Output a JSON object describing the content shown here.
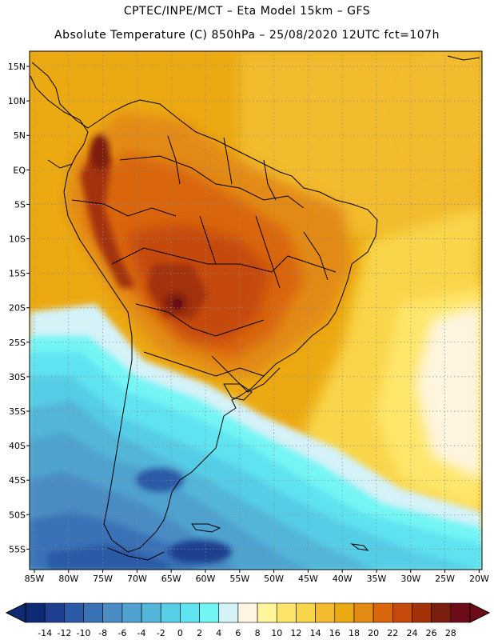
{
  "header": {
    "line1": "CPTEC/INPE/MCT –  Eta Model 15km – GFS",
    "line2": "Absolute Temperature (C) 850hPa – 25/08/2020 12UTC fct=107h"
  },
  "map": {
    "lat_labels": [
      "15N",
      "10N",
      "5N",
      "EQ",
      "5S",
      "10S",
      "15S",
      "20S",
      "25S",
      "30S",
      "35S",
      "40S",
      "45S",
      "50S",
      "55S"
    ],
    "lon_labels": [
      "85W",
      "80W",
      "75W",
      "70W",
      "65W",
      "60W",
      "55W",
      "50W",
      "45W",
      "40W",
      "35W",
      "30W",
      "25W",
      "20W"
    ]
  },
  "colorbar": {
    "ticks": [
      "-14",
      "-12",
      "-10",
      "-8",
      "-6",
      "-4",
      "-2",
      "0",
      "2",
      "4",
      "6",
      "8",
      "10",
      "12",
      "14",
      "16",
      "18",
      "20",
      "22",
      "24",
      "26",
      "28"
    ],
    "colors": [
      "#0d2a72",
      "#1e3f8e",
      "#2c5aa6",
      "#3a72b6",
      "#4a8cc4",
      "#4fa2cf",
      "#52b6d8",
      "#57cde6",
      "#5ee3f0",
      "#74f5f5",
      "#d4f2f8",
      "#fff5e0",
      "#fff59a",
      "#ffe66b",
      "#f9d54a",
      "#f3bb2e",
      "#ecaa12",
      "#e38a12",
      "#d9650d",
      "#c54a0b",
      "#a33208",
      "#7c1e0d",
      "#6b0c18"
    ],
    "under_color": "#0d2a72",
    "over_color": "#6b0c18"
  }
}
